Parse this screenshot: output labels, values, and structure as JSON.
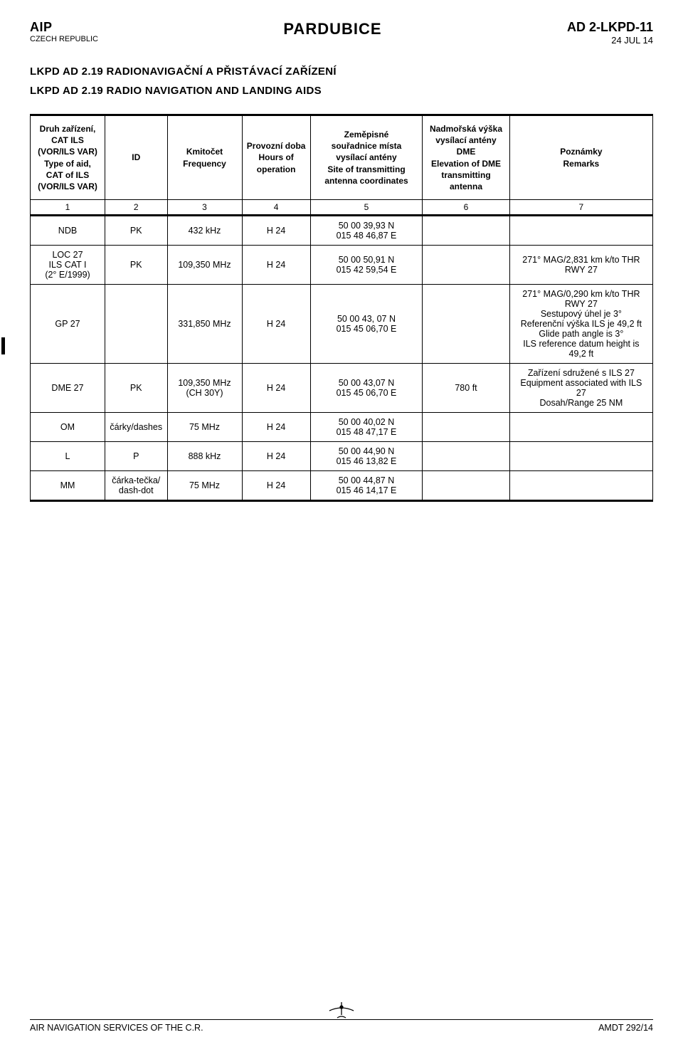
{
  "header": {
    "left_top": "AIP",
    "left_sub": "CZECH REPUBLIC",
    "center": "PARDUBICE",
    "right_top": "AD 2-LKPD-11",
    "right_sub": "24 JUL 14"
  },
  "section": {
    "line1": "LKPD AD 2.19  RADIONAVIGAČNÍ A PŘISTÁVACÍ ZAŘÍZENÍ",
    "line2": "LKPD AD 2.19  RADIO NAVIGATION AND LANDING AIDS"
  },
  "table": {
    "headers": {
      "c1": "Druh zařízení,\nCAT ILS\n(VOR/ILS VAR)\nType of aid,\nCAT of ILS\n(VOR/ILS VAR)",
      "c2": "ID",
      "c3": "Kmitočet\nFrequency",
      "c4": "Provozní doba\nHours of\noperation",
      "c5": "Zeměpisné\nsouřadnice místa\nvysílací antény\nSite of transmitting\nantenna coordinates",
      "c6": "Nadmořská výška\nvysílací antény DME\nElevation of DME\ntransmitting\nantenna",
      "c7": "Poznámky\nRemarks"
    },
    "numrow": [
      "1",
      "2",
      "3",
      "4",
      "5",
      "6",
      "7"
    ],
    "rows": [
      {
        "c1": "NDB",
        "c2": "PK",
        "c3": "432 kHz",
        "c4": "H 24",
        "c5": "50 00 39,93 N\n015 48 46,87 E",
        "c6": "",
        "c7": ""
      },
      {
        "c1": "LOC 27\nILS CAT I\n(2° E/1999)",
        "c2": "PK",
        "c3": "109,350 MHz",
        "c4": "H 24",
        "c5": "50 00 50,91 N\n015 42 59,54 E",
        "c6": "",
        "c7": "271° MAG/2,831 km k/to THR RWY 27"
      },
      {
        "c1": "GP 27",
        "c2": "",
        "c3": "331,850 MHz",
        "c4": "H 24",
        "c5": "50 00 43, 07 N\n015 45 06,70 E",
        "c6": "",
        "c7": "271° MAG/0,290 km k/to THR RWY 27\nSestupový úhel je 3°\nReferenční výška ILS je 49,2 ft\nGlide path angle is 3°\nILS reference datum height is 49,2 ft"
      },
      {
        "c1": "DME 27",
        "c2": "PK",
        "c3": "109,350 MHz\n(CH 30Y)",
        "c4": "H 24",
        "c5": "50 00 43,07 N\n015 45 06,70 E",
        "c6": "780 ft",
        "c7": "Zařízení sdružené s ILS 27\nEquipment associated with ILS 27\nDosah/Range 25 NM"
      },
      {
        "c1": "OM",
        "c2": "čárky/dashes",
        "c3": "75 MHz",
        "c4": "H 24",
        "c5": "50 00 40,02 N\n015 48 47,17 E",
        "c6": "",
        "c7": ""
      },
      {
        "c1": "L",
        "c2": "P",
        "c3": "888 kHz",
        "c4": "H 24",
        "c5": "50 00 44,90 N\n015 46 13,82 E",
        "c6": "",
        "c7": ""
      },
      {
        "c1": "MM",
        "c2": "čárka-tečka/\ndash-dot",
        "c3": "75 MHz",
        "c4": "H 24",
        "c5": "50 00 44,87 N\n015 46 14,17 E",
        "c6": "",
        "c7": ""
      }
    ],
    "col_widths": [
      "12%",
      "10%",
      "12%",
      "11%",
      "18%",
      "14%",
      "23%"
    ]
  },
  "footer": {
    "left": "AIR NAVIGATION SERVICES OF THE C.R.",
    "right": "AMDT 292/14"
  }
}
